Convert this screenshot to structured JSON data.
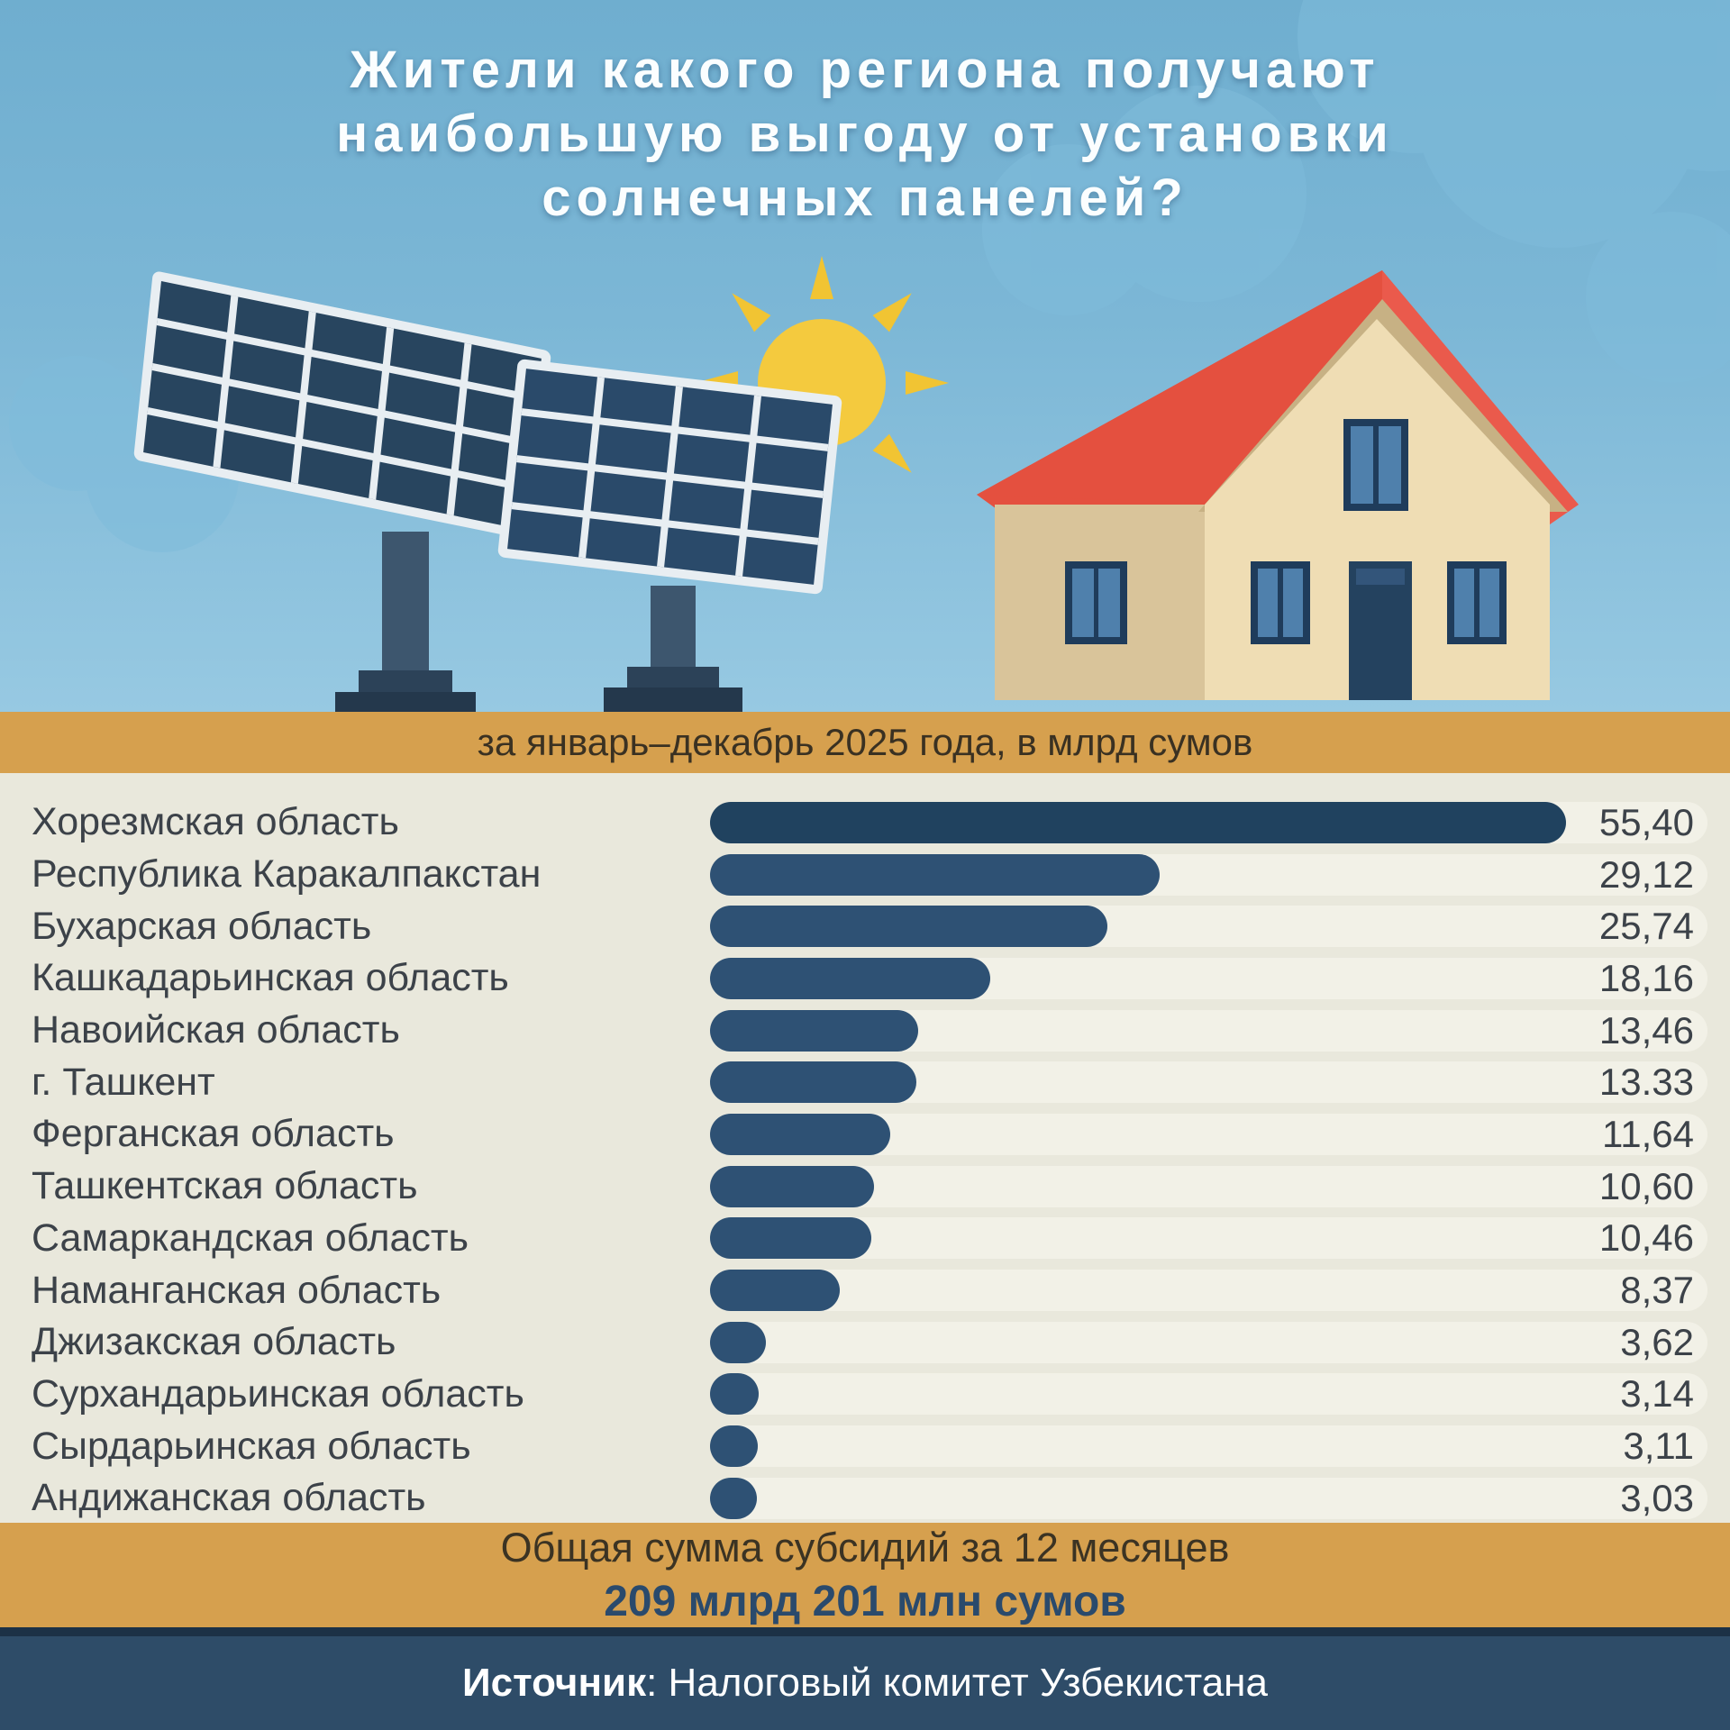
{
  "title": {
    "line1": "Жители какого региона получают",
    "line2": "наибольшую выгоду от установки",
    "line3": "солнечных панелей?"
  },
  "period_band": {
    "label": "за январь–декабрь 2025 года, в млрд сумов"
  },
  "chart_data": {
    "type": "bar",
    "orientation": "horizontal",
    "title": "Жители какого региона получают наибольшую выгоду от установки солнечных панелей?",
    "subtitle": "за январь–декабрь 2025 года, в млрд сумов",
    "unit": "млрд сумов",
    "period": "январь–декабрь 2025",
    "grid": false,
    "legend": false,
    "xlim": [
      0,
      55.4
    ],
    "categories": [
      "Хорезмская область",
      "Республика Каракалпакстан",
      "Бухарская область",
      "Кашкадарьинская область",
      "Навоийская область",
      "г. Ташкент",
      "Ферганская область",
      "Ташкентская область",
      "Самаркандская область",
      "Наманганская область",
      "Джизакская область",
      "Сурхандарьинская область",
      "Сырдарьинская область",
      "Андижанская область"
    ],
    "values": [
      55.4,
      29.12,
      25.74,
      18.16,
      13.46,
      13.33,
      11.64,
      10.6,
      10.46,
      8.37,
      3.62,
      3.14,
      3.11,
      3.03
    ],
    "value_labels": [
      "55,40",
      "29,12",
      "25,74",
      "18,16",
      "13,46",
      "13.33",
      "11,64",
      "10,60",
      "10,46",
      "8,37",
      "3,62",
      "3,14",
      "3,11",
      "3,03"
    ]
  },
  "total_band": {
    "caption": "Общая сумма субсидий за 12 месяцев",
    "amount": "209 млрд 201 млн сумов"
  },
  "footer": {
    "source_label": "Источник",
    "source_text": ": Налоговый комитет Узбекистана"
  },
  "illustration": {
    "items": [
      "solar-panel-left",
      "solar-panel-right",
      "sun",
      "house",
      "clouds"
    ]
  },
  "colors": {
    "sky_top": "#6FAECF",
    "sky_bottom": "#97C9E2",
    "band_orange": "#D6A04E",
    "chart_bg": "#E9E8DC",
    "bar_track": "#F2F1E7",
    "bar_fill": "#2E5174",
    "bar_fill_first": "#20425F",
    "text_dark": "#3C4249",
    "amount_navy": "#2A4A6C",
    "footer_bg": "#2E4C68",
    "footer_line": "#1C3146",
    "title_color": "#FBFEFF",
    "roof_red": "#E4503F",
    "wall_cream": "#EFDDB4",
    "wall_tan": "#D9C49A",
    "window_navy": "#1F3C5B",
    "door_navy": "#24425F",
    "sun_yellow": "#F4CA3E",
    "panel_cell": "#28455F",
    "panel_frame": "#E8EEF2",
    "pole_slate": "#3D566E",
    "cloud": "#7FBCDB"
  }
}
